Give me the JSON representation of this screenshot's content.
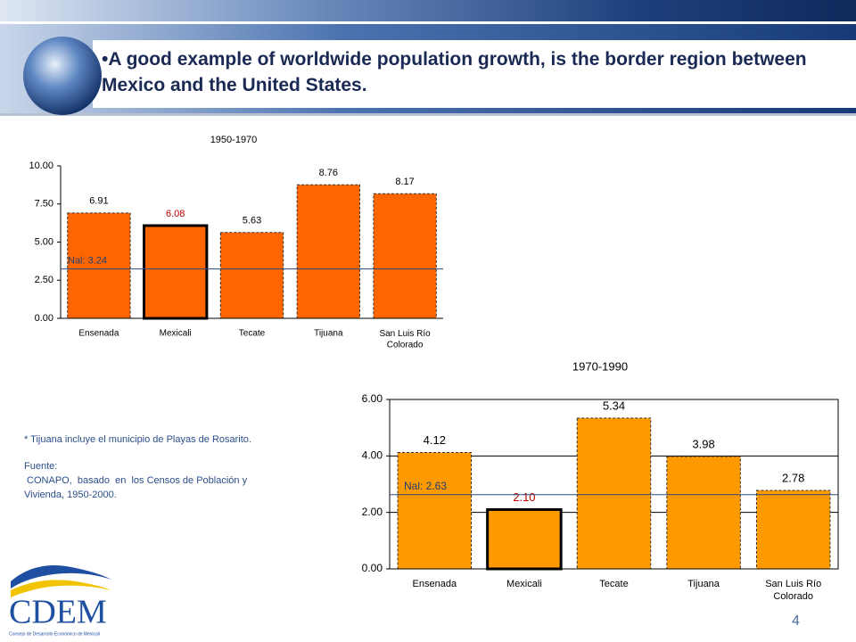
{
  "header": {
    "title": "•A good example of worldwide population growth, is the border region between Mexico and the United States."
  },
  "notes": [
    "* Tijuana incluye el municipio de Playas de Rosarito.",
    "Fuente:",
    " CONAPO,  basado  en  los Censos de Población y",
    "Vivienda, 1950-2000."
  ],
  "page_number": "4",
  "logo": {
    "name": "CDEM",
    "subtitle": "Consejo de Desarrollo Económico de Mexicali"
  },
  "chart_data": [
    {
      "type": "bar",
      "title": "1950-1970",
      "categories": [
        "Ensenada",
        "Mexicali",
        "Tecate",
        "Tijuana",
        "San Luis Río Colorado"
      ],
      "values": [
        6.91,
        6.08,
        5.63,
        8.76,
        8.17
      ],
      "color": "#ff6600",
      "highlight_category": "Mexicali",
      "highlight_label_color": "#c00000",
      "ylim": [
        0,
        10
      ],
      "yticks": [
        {
          "value": 0,
          "label": "0.00"
        },
        {
          "value": 2.5,
          "label": "2.50"
        },
        {
          "value": 5,
          "label": "5.00"
        },
        {
          "value": 7.5,
          "label": "7.50"
        },
        {
          "value": 10,
          "label": "10.00"
        }
      ],
      "grid": false,
      "reference": {
        "value": 3.24,
        "label": "Nal: 3.24"
      }
    },
    {
      "type": "bar",
      "title": "1970-1990",
      "categories": [
        "Ensenada",
        "Mexicali",
        "Tecate",
        "Tijuana",
        "San Luis Río Colorado"
      ],
      "values": [
        4.12,
        2.1,
        5.34,
        3.98,
        2.78
      ],
      "value_labels": [
        "4.12",
        "2.10",
        "5.34",
        "3.98",
        "2.78"
      ],
      "color": "#ff9900",
      "highlight_category": "Mexicali",
      "highlight_label_color": "#c00000",
      "ylim": [
        0,
        6
      ],
      "yticks": [
        {
          "value": 0,
          "label": "0.00"
        },
        {
          "value": 2,
          "label": "2.00"
        },
        {
          "value": 4,
          "label": "4.00"
        },
        {
          "value": 6,
          "label": "6.00"
        }
      ],
      "grid": true,
      "reference": {
        "value": 2.63,
        "label": "Nal: 2.63"
      }
    }
  ]
}
